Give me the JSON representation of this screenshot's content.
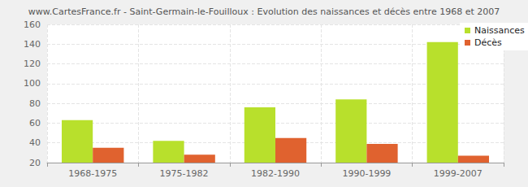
{
  "chart_data": {
    "type": "bar",
    "title": "www.CartesFrance.fr - Saint-Germain-le-Fouilloux : Evolution des naissances et décès entre 1968 et 2007",
    "categories": [
      "1968-1975",
      "1975-1982",
      "1982-1990",
      "1990-1999",
      "1999-2007"
    ],
    "series": [
      {
        "name": "Naissances",
        "color": "#b8e02c",
        "values": [
          63,
          42,
          76,
          84,
          142
        ]
      },
      {
        "name": "Décès",
        "color": "#e0622f",
        "values": [
          35,
          28,
          45,
          39,
          27
        ]
      }
    ],
    "ylim": [
      20,
      160
    ],
    "yticks": [
      20,
      40,
      60,
      80,
      100,
      120,
      140,
      160
    ],
    "grid": true,
    "legend": "top-right"
  }
}
